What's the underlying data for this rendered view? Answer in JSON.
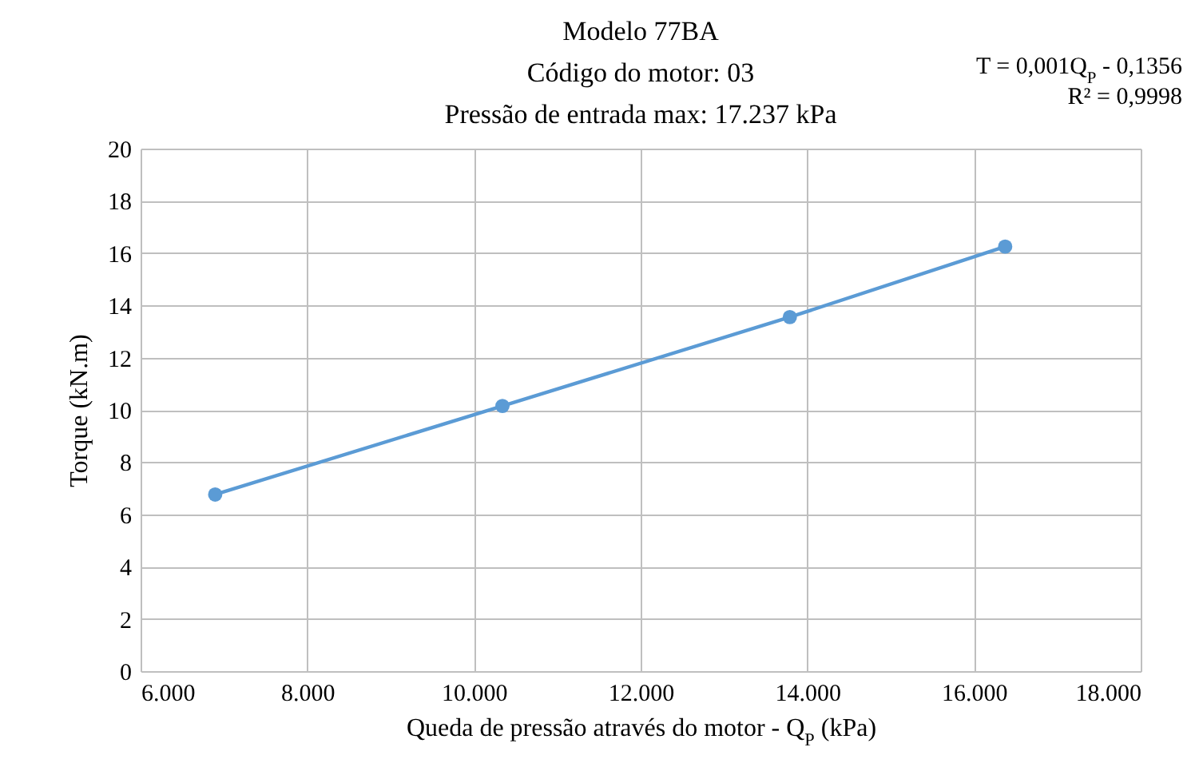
{
  "chart_data": {
    "type": "line",
    "title": [
      "Modelo 77BA",
      "Código do motor: 03",
      "Pressão de entrada max: 17.237 kPa"
    ],
    "xlabel": "Queda de pressão através do motor - Q$_{P}$ (kPa)",
    "ylabel": "Torque (kN.m)",
    "annotations": [
      "T = 0,001Q$_{P}$ - 0,1356",
      "R² = 0,9998"
    ],
    "x": [
      6895,
      10342,
      13790,
      16374
    ],
    "series": [
      {
        "color": "#5b9bd5",
        "values": [
          6.76,
          10.15,
          13.55,
          16.25
        ]
      }
    ],
    "xlim": [
      6000,
      18000
    ],
    "xticks": [
      {
        "value": 6000,
        "label": "6.000"
      },
      {
        "value": 8000,
        "label": "8.000"
      },
      {
        "value": 10000,
        "label": "10.000"
      },
      {
        "value": 12000,
        "label": "12.000"
      },
      {
        "value": 14000,
        "label": "14.000"
      },
      {
        "value": 16000,
        "label": "16.000"
      },
      {
        "value": 18000,
        "label": "18.000"
      }
    ],
    "ylim": [
      0,
      20
    ],
    "yticks": [
      0,
      2,
      4,
      6,
      8,
      10,
      12,
      14,
      16,
      18,
      20
    ],
    "grid": true,
    "marker": "circle",
    "line_style": "solid"
  }
}
